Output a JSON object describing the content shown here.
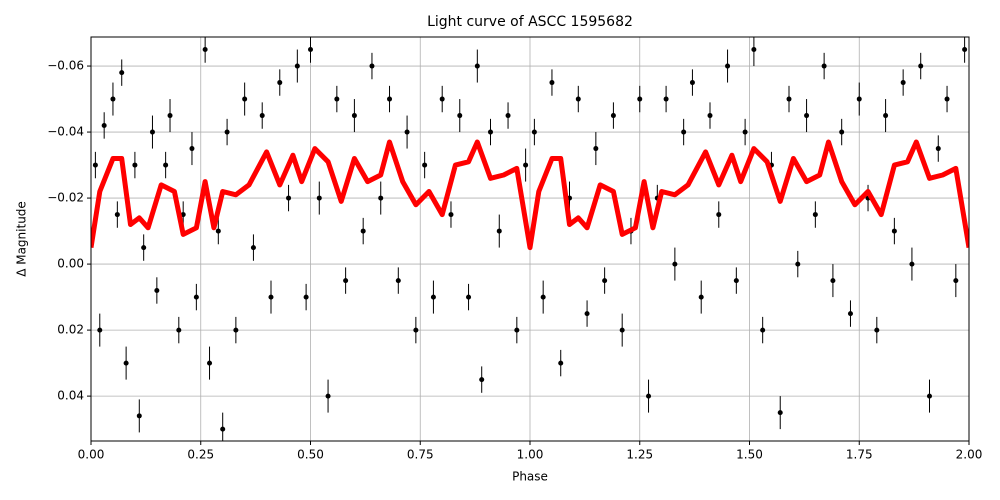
{
  "chart_data": {
    "type": "scatter-errorbar-line",
    "title": "Light curve of ASCC 1595682",
    "x_label": "Phase",
    "y_label": "Δ Magnitude",
    "xlim": [
      0,
      2
    ],
    "ylim": [
      0.0536,
      -0.0688
    ],
    "xticks": [
      {
        "value": 0,
        "label": "0.00"
      },
      {
        "value": 0.25,
        "label": "0.25"
      },
      {
        "value": 0.5,
        "label": "0.50"
      },
      {
        "value": 0.75,
        "label": "0.75"
      },
      {
        "value": 1,
        "label": "1.00"
      },
      {
        "value": 1.25,
        "label": "1.25"
      },
      {
        "value": 1.5,
        "label": "1.50"
      },
      {
        "value": 1.75,
        "label": "1.75"
      },
      {
        "value": 2,
        "label": "2.00"
      }
    ],
    "yticks": [
      {
        "value": -0.06,
        "label": "−0.06"
      },
      {
        "value": -0.04,
        "label": "−0.04"
      },
      {
        "value": -0.02,
        "label": "−0.02"
      },
      {
        "value": 0,
        "label": "0.00"
      },
      {
        "value": 0.02,
        "label": "0.02"
      },
      {
        "value": 0.04,
        "label": "0.04"
      }
    ],
    "grid": true,
    "points": {
      "color": "#000000",
      "x": [
        0.01,
        0.02,
        0.03,
        0.05,
        0.06,
        0.07,
        0.08,
        0.1,
        0.11,
        0.12,
        0.14,
        0.15,
        0.17,
        0.18,
        0.2,
        0.21,
        0.23,
        0.24,
        0.26,
        0.27,
        0.29,
        0.3,
        0.31,
        0.33,
        0.35,
        0.37,
        0.39,
        0.41,
        0.43,
        0.45,
        0.47,
        0.49,
        0.5,
        0.52,
        0.54,
        0.56,
        0.58,
        0.6,
        0.62,
        0.64,
        0.66,
        0.68,
        0.7,
        0.72,
        0.74,
        0.76,
        0.78,
        0.8,
        0.82,
        0.84,
        0.86,
        0.88,
        0.89,
        0.91,
        0.93,
        0.95,
        0.97,
        0.99,
        1.01,
        1.03,
        1.05,
        1.07,
        1.09,
        1.11,
        1.13,
        1.15,
        1.17,
        1.19,
        1.21,
        1.23,
        1.25,
        1.27,
        1.29,
        1.31,
        1.33,
        1.35,
        1.37,
        1.39,
        1.41,
        1.43,
        1.45,
        1.47,
        1.49,
        1.51,
        1.53,
        1.55,
        1.57,
        1.59,
        1.61,
        1.63,
        1.65,
        1.67,
        1.69,
        1.71,
        1.73,
        1.75,
        1.77,
        1.79,
        1.81,
        1.83,
        1.85,
        1.87,
        1.89,
        1.91,
        1.93,
        1.95,
        1.97,
        1.99
      ],
      "values": [
        -0.03,
        0.02,
        -0.042,
        -0.05,
        -0.015,
        -0.058,
        0.03,
        -0.03,
        0.046,
        -0.005,
        -0.04,
        0.008,
        -0.03,
        -0.045,
        0.02,
        -0.015,
        -0.035,
        0.01,
        -0.065,
        0.03,
        -0.01,
        0.05,
        -0.04,
        0.02,
        -0.05,
        -0.005,
        -0.045,
        0.01,
        -0.055,
        -0.02,
        -0.06,
        0.01,
        -0.065,
        -0.02,
        0.04,
        -0.05,
        0.005,
        -0.045,
        -0.01,
        -0.06,
        -0.02,
        -0.05,
        0.005,
        -0.04,
        0.02,
        -0.03,
        0.01,
        -0.05,
        -0.015,
        -0.045,
        0.01,
        -0.06,
        0.035,
        -0.04,
        -0.01,
        -0.045,
        0.02,
        -0.03,
        -0.04,
        0.01,
        -0.055,
        0.03,
        -0.02,
        -0.05,
        0.015,
        -0.035,
        0.005,
        -0.045,
        0.02,
        -0.01,
        -0.05,
        0.04,
        -0.02,
        -0.05,
        0,
        -0.04,
        -0.055,
        0.01,
        -0.045,
        -0.015,
        -0.06,
        0.005,
        -0.04,
        -0.065,
        0.02,
        -0.03,
        0.045,
        -0.05,
        0,
        -0.045,
        -0.015,
        -0.06,
        0.005,
        -0.04,
        0.015,
        -0.05,
        -0.02,
        0.02,
        -0.045,
        -0.01,
        -0.055,
        0,
        -0.06,
        0.04,
        -0.035,
        -0.05,
        0.005,
        -0.065
      ],
      "errors": [
        0.004,
        0.005,
        0.004,
        0.005,
        0.004,
        0.004,
        0.005,
        0.004,
        0.005,
        0.004,
        0.005,
        0.004,
        0.004,
        0.005,
        0.004,
        0.004,
        0.005,
        0.004,
        0.004,
        0.005,
        0.004,
        0.005,
        0.004,
        0.004,
        0.005,
        0.004,
        0.004,
        0.005,
        0.004,
        0.004,
        0.005,
        0.004,
        0.004,
        0.005,
        0.005,
        0.004,
        0.004,
        0.005,
        0.004,
        0.004,
        0.005,
        0.004,
        0.004,
        0.005,
        0.004,
        0.004,
        0.005,
        0.004,
        0.004,
        0.005,
        0.004,
        0.005,
        0.004,
        0.004,
        0.005,
        0.004,
        0.004,
        0.005,
        0.004,
        0.005,
        0.004,
        0.004,
        0.005,
        0.004,
        0.004,
        0.005,
        0.004,
        0.004,
        0.005,
        0.004,
        0.004,
        0.005,
        0.004,
        0.004,
        0.005,
        0.004,
        0.004,
        0.005,
        0.004,
        0.004,
        0.005,
        0.004,
        0.004,
        0.005,
        0.004,
        0.004,
        0.005,
        0.004,
        0.004,
        0.005,
        0.004,
        0.004,
        0.005,
        0.004,
        0.004,
        0.005,
        0.004,
        0.004,
        0.005,
        0.004,
        0.004,
        0.005,
        0.004,
        0.005,
        0.004,
        0.004,
        0.005,
        0.004
      ]
    },
    "curve": {
      "color": "#ff0000",
      "x": [
        0,
        0.02,
        0.05,
        0.07,
        0.09,
        0.11,
        0.13,
        0.16,
        0.19,
        0.21,
        0.24,
        0.26,
        0.28,
        0.3,
        0.33,
        0.36,
        0.4,
        0.43,
        0.46,
        0.48,
        0.51,
        0.54,
        0.57,
        0.6,
        0.63,
        0.66,
        0.68,
        0.71,
        0.74,
        0.77,
        0.8,
        0.83,
        0.86,
        0.88,
        0.91,
        0.94,
        0.97,
        1.0,
        1.02,
        1.05,
        1.07,
        1.09,
        1.11,
        1.13,
        1.16,
        1.19,
        1.21,
        1.24,
        1.26,
        1.28,
        1.3,
        1.33,
        1.36,
        1.4,
        1.43,
        1.46,
        1.48,
        1.51,
        1.54,
        1.57,
        1.6,
        1.63,
        1.66,
        1.68,
        1.71,
        1.74,
        1.77,
        1.8,
        1.83,
        1.86,
        1.88,
        1.91,
        1.94,
        1.97,
        2.0
      ],
      "values": [
        -0.005,
        -0.022,
        -0.032,
        -0.032,
        -0.012,
        -0.014,
        -0.011,
        -0.024,
        -0.022,
        -0.009,
        -0.011,
        -0.025,
        -0.011,
        -0.022,
        -0.021,
        -0.024,
        -0.034,
        -0.024,
        -0.033,
        -0.025,
        -0.035,
        -0.031,
        -0.019,
        -0.032,
        -0.025,
        -0.027,
        -0.037,
        -0.025,
        -0.018,
        -0.022,
        -0.015,
        -0.03,
        -0.031,
        -0.037,
        -0.026,
        -0.027,
        -0.029,
        -0.005,
        -0.022,
        -0.032,
        -0.032,
        -0.012,
        -0.014,
        -0.011,
        -0.024,
        -0.022,
        -0.009,
        -0.011,
        -0.025,
        -0.011,
        -0.022,
        -0.021,
        -0.024,
        -0.034,
        -0.024,
        -0.033,
        -0.025,
        -0.035,
        -0.031,
        -0.019,
        -0.032,
        -0.025,
        -0.027,
        -0.037,
        -0.025,
        -0.018,
        -0.022,
        -0.015,
        -0.03,
        -0.031,
        -0.037,
        -0.026,
        -0.027,
        -0.029,
        -0.005
      ]
    }
  }
}
